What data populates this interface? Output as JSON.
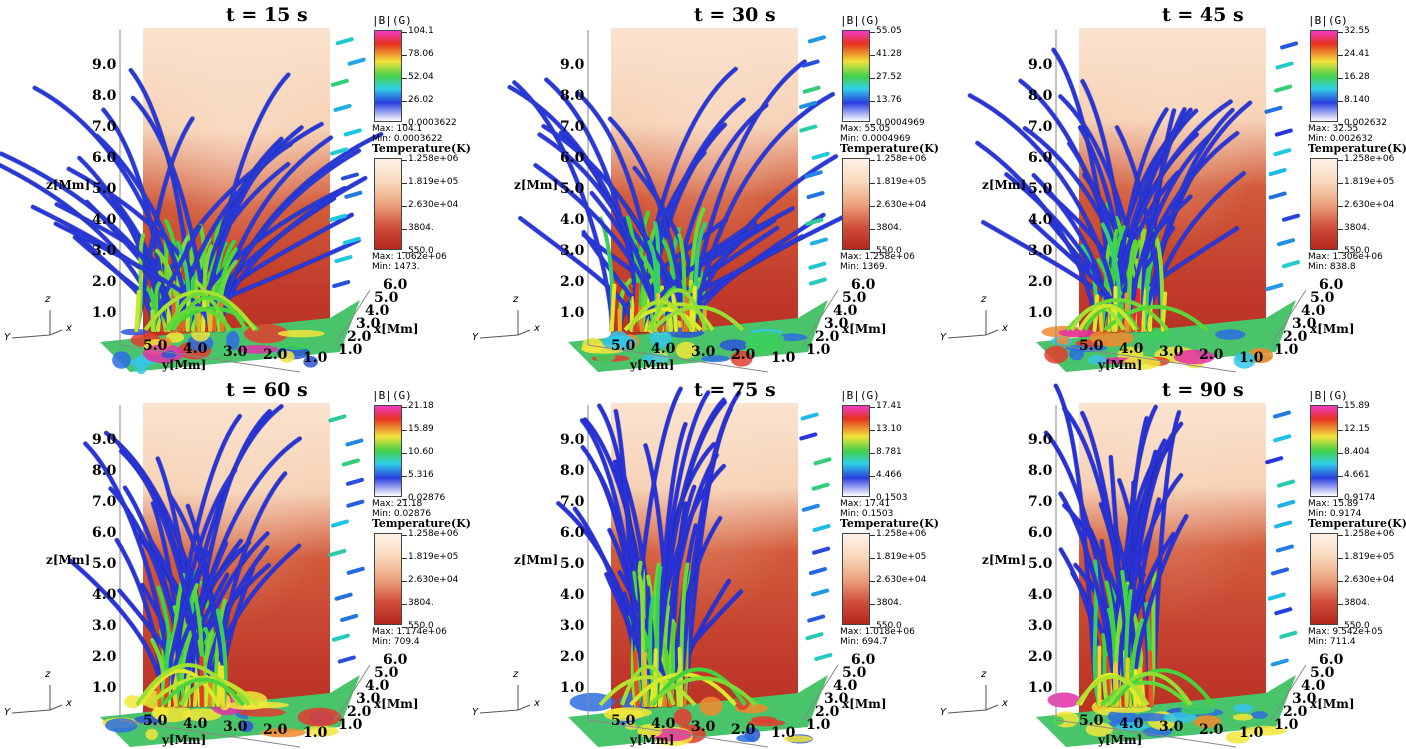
{
  "labels": {
    "b_title": "|B|(G)",
    "temp_title": "Temperature(K)",
    "max": "Max:",
    "min": "Min:",
    "z_axis": "z[Mm]",
    "y_axis": "y[Mm]",
    "x_axis": "x[Mm]",
    "z_ticks": [
      "1.0",
      "2.0",
      "3.0",
      "4.0",
      "5.0",
      "6.0",
      "7.0",
      "8.0",
      "9.0"
    ],
    "y_ticks": [
      "5.0",
      "4.0",
      "3.0",
      "2.0",
      "1.0"
    ],
    "x_ticks": [
      "1.0",
      "2.0",
      "3.0",
      "4.0",
      "5.0",
      "6.0"
    ],
    "triad": {
      "z": "z",
      "x": "x",
      "y": "Y"
    }
  },
  "temperature_scale": {
    "ticks": [
      "1.258e+06",
      "1.819e+05",
      "2.630e+04",
      "3804.",
      "550.0"
    ]
  },
  "panels": [
    {
      "title": "t = 15 s",
      "b_ticks": [
        "104.1",
        "78.06",
        "52.04",
        "26.02",
        "0.0003622"
      ],
      "b_max": "104.1",
      "b_min": "0.0003622",
      "t_max": "1.062e+06",
      "t_min": "1473.",
      "field_height": 0.82,
      "spread": 1.0,
      "core": 0.45
    },
    {
      "title": "t = 30 s",
      "b_ticks": [
        "55.05",
        "41.28",
        "27.52",
        "13.76",
        "0.0004969"
      ],
      "b_max": "55.05",
      "b_min": "0.0004969",
      "t_max": "1.258e+06",
      "t_min": "1369.",
      "field_height": 0.85,
      "spread": 0.9,
      "core": 0.6
    },
    {
      "title": "t = 45 s",
      "b_ticks": [
        "32.55",
        "24.41",
        "16.28",
        "8.140",
        "0.002632"
      ],
      "b_max": "32.55",
      "b_min": "0.002632",
      "t_max": "1.306e+06",
      "t_min": "838.8",
      "field_height": 0.9,
      "spread": 0.75,
      "core": 0.75
    },
    {
      "title": "t = 60 s",
      "b_ticks": [
        "21.18",
        "15.89",
        "10.60",
        "5.316",
        "0.02876"
      ],
      "b_max": "21.18",
      "b_min": "0.02876",
      "t_max": "1.174e+06",
      "t_min": "709.4",
      "field_height": 0.95,
      "spread": 0.6,
      "core": 0.85
    },
    {
      "title": "t = 75 s",
      "b_ticks": [
        "17.41",
        "13.10",
        "8.781",
        "4.466",
        "0.1503"
      ],
      "b_max": "17.41",
      "b_min": "0.1503",
      "t_max": "1.018e+06",
      "t_min": "694.7",
      "field_height": 1.0,
      "spread": 0.45,
      "core": 0.95
    },
    {
      "title": "t = 90 s",
      "b_ticks": [
        "15.89",
        "12.15",
        "8.404",
        "4.661",
        "0.9174"
      ],
      "b_max": "15.89",
      "b_min": "0.9174",
      "t_max": "9.542e+05",
      "t_min": "711.4",
      "field_height": 1.0,
      "spread": 0.4,
      "core": 1.0
    }
  ]
}
